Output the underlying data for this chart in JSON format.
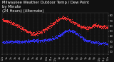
{
  "title": "Milwaukee Weather Outdoor Temp / Dew Point\nby Minute\n(24 Hours) (Alternate)",
  "title_fontsize": 3.8,
  "bg_color": "#111111",
  "plot_bg_color": "#111111",
  "grid_color": "#666666",
  "temp_color": "#ff3333",
  "dew_color": "#3333ff",
  "ylim": [
    5,
    85
  ],
  "yticks": [
    10,
    20,
    30,
    40,
    50,
    60,
    70,
    80
  ],
  "ylabel_color": "#cccccc",
  "xlabel_color": "#bbbbbb",
  "tick_fontsize": 2.8,
  "marker_size": 0.5,
  "num_points": 1440,
  "seed": 42,
  "xlim": [
    0,
    1440
  ],
  "num_vgrid": 24,
  "temp_shape": [
    [
      0,
      72
    ],
    [
      60,
      70
    ],
    [
      120,
      67
    ],
    [
      180,
      63
    ],
    [
      240,
      58
    ],
    [
      300,
      52
    ],
    [
      360,
      48
    ],
    [
      420,
      45
    ],
    [
      480,
      46
    ],
    [
      540,
      50
    ],
    [
      600,
      55
    ],
    [
      660,
      62
    ],
    [
      720,
      68
    ],
    [
      780,
      74
    ],
    [
      840,
      76
    ],
    [
      900,
      73
    ],
    [
      960,
      68
    ],
    [
      1020,
      62
    ],
    [
      1080,
      58
    ],
    [
      1140,
      55
    ],
    [
      1200,
      58
    ],
    [
      1260,
      62
    ],
    [
      1320,
      60
    ],
    [
      1380,
      58
    ],
    [
      1439,
      57
    ]
  ],
  "dew_shape": [
    [
      0,
      28
    ],
    [
      60,
      29
    ],
    [
      120,
      30
    ],
    [
      180,
      30
    ],
    [
      240,
      29
    ],
    [
      300,
      30
    ],
    [
      360,
      31
    ],
    [
      420,
      32
    ],
    [
      480,
      32
    ],
    [
      540,
      32
    ],
    [
      600,
      33
    ],
    [
      660,
      35
    ],
    [
      720,
      38
    ],
    [
      780,
      42
    ],
    [
      840,
      48
    ],
    [
      900,
      52
    ],
    [
      960,
      50
    ],
    [
      1020,
      45
    ],
    [
      1080,
      38
    ],
    [
      1140,
      32
    ],
    [
      1200,
      30
    ],
    [
      1260,
      28
    ],
    [
      1320,
      27
    ],
    [
      1380,
      26
    ],
    [
      1439,
      26
    ]
  ],
  "xtick_labels": [
    "12a",
    "1a",
    "2a",
    "3a",
    "4a",
    "5a",
    "6a",
    "7a",
    "8a",
    "9a",
    "10a",
    "11a",
    "12p",
    "1p",
    "2p",
    "3p",
    "4p",
    "5p",
    "6p",
    "7p",
    "8p",
    "9p",
    "10p",
    "11p",
    "12a"
  ],
  "xtick_every": 60
}
